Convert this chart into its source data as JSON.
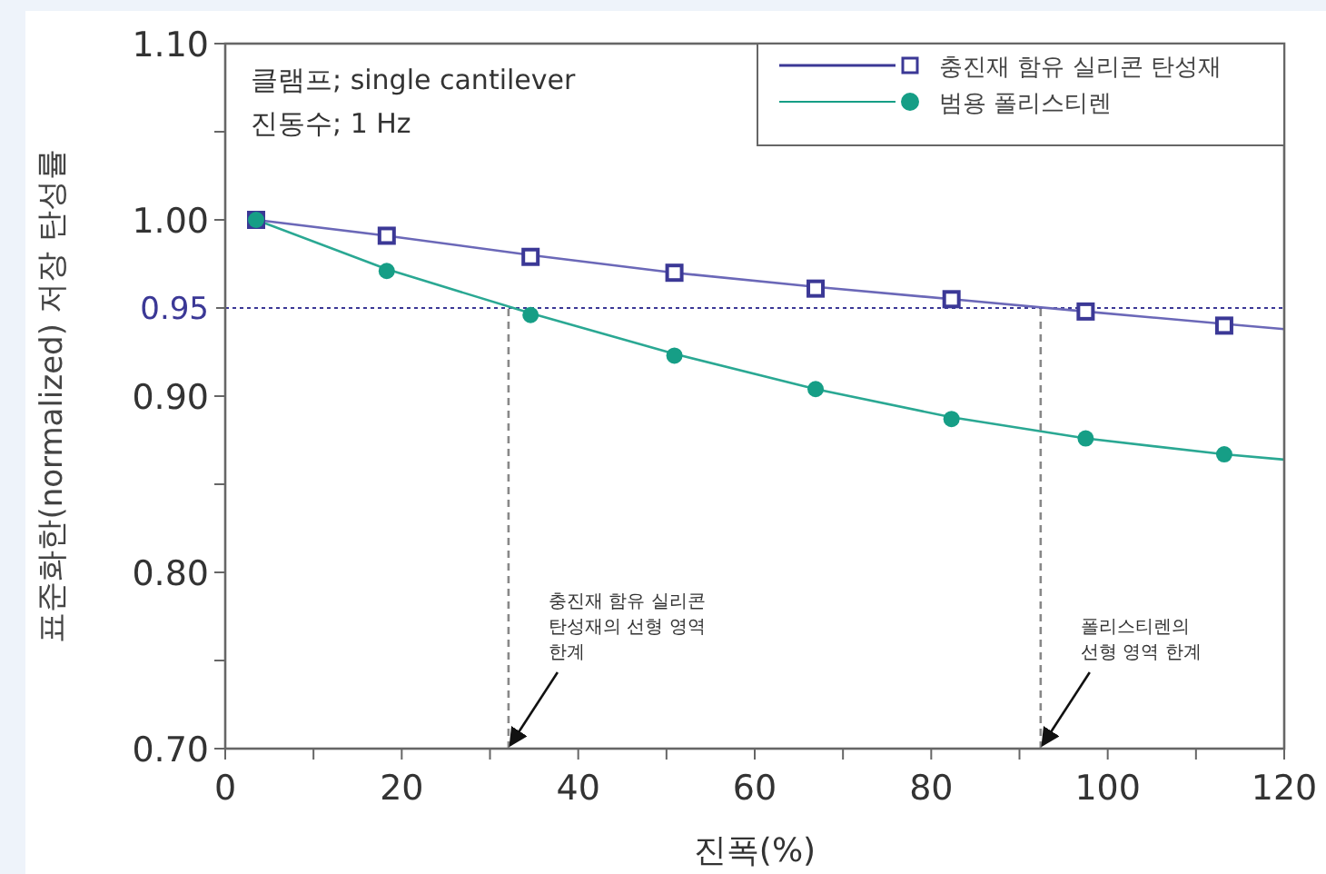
{
  "chart_data": {
    "type": "scatter",
    "xlabel": "진폭(%)",
    "ylabel": "표준화한(normalized) 저장 탄성률",
    "xlim": [
      0,
      120
    ],
    "ylim": [
      0.7,
      1.1
    ],
    "xticks": [
      0,
      {
        "value": 10,
        "label": null
      },
      20,
      {
        "value": 30,
        "label": null
      },
      40,
      {
        "value": 50,
        "label": null
      },
      60,
      {
        "value": 70,
        "label": null
      },
      80,
      {
        "value": 90,
        "label": null
      },
      100,
      {
        "value": 110,
        "label": null
      },
      120
    ],
    "yticks": [
      {
        "value": 0.7,
        "label": "0.70"
      },
      {
        "value": 0.75,
        "label": null
      },
      {
        "value": 0.8,
        "label": "0.80"
      },
      {
        "value": 0.85,
        "label": null
      },
      {
        "value": 0.9,
        "label": "0.90"
      },
      {
        "value": 1.0,
        "label": "1.00"
      },
      {
        "value": 1.05,
        "label": null
      },
      {
        "value": 1.1,
        "label": "1.10"
      }
    ],
    "legend": "top right",
    "grid": false,
    "series": [
      {
        "name": "충진재 함유 실리콘 탄성재",
        "color": "#3b3896",
        "marker": "square",
        "x": [
          3.5,
          18.3,
          34.6,
          50.9,
          66.9,
          82.3,
          97.5,
          113.2
        ],
        "values": [
          1.0,
          0.991,
          0.979,
          0.97,
          0.961,
          0.955,
          0.948,
          0.94
        ]
      },
      {
        "name": "범용 폴리스티렌",
        "color": "#169e86",
        "marker": "circle",
        "x": [
          3.5,
          18.3,
          34.6,
          50.9,
          66.9,
          82.3,
          97.5,
          113.2
        ],
        "values": [
          1.0,
          0.971,
          0.946,
          0.923,
          0.904,
          0.887,
          0.876,
          0.867
        ]
      },
      {
        "type": "line",
        "color": "#6b68b8",
        "x": [
          3.5,
          18.3,
          34.6,
          50.9,
          66.9,
          82.3,
          97.5,
          113.2,
          120
        ],
        "values": [
          1.0,
          0.991,
          0.98,
          0.97,
          0.962,
          0.955,
          0.948,
          0.941,
          0.938
        ]
      },
      {
        "type": "line",
        "color": "#2aa893",
        "x": [
          3.5,
          18.3,
          34.6,
          50.9,
          66.9,
          82.3,
          97.5,
          113.2,
          120
        ],
        "values": [
          1.0,
          0.972,
          0.947,
          0.924,
          0.904,
          0.888,
          0.876,
          0.867,
          0.864
        ]
      },
      {
        "type": "line",
        "color": "#888888",
        "line_style": "dashed",
        "x": [
          32.1,
          32.1
        ],
        "values": [
          0.7,
          0.95
        ]
      },
      {
        "type": "line",
        "color": "#888888",
        "line_style": "dashed",
        "x": [
          92.4,
          92.4
        ],
        "values": [
          0.7,
          0.95
        ]
      }
    ],
    "ref_lines": [
      {
        "axis": "y",
        "value": 0.95,
        "label": "0.95",
        "color": "#3b3896",
        "line_style": "dotted"
      }
    ],
    "annotations": [
      "클램프; single cantilever",
      "진동수; 1 Hz",
      {
        "text": "충진재 함유 실리콘\n탄성재의 선형 영역\n한계",
        "x": 32.1,
        "y": 0.7
      },
      {
        "text": "폴리스티렌의\n선형 영역 한계",
        "x": 92.4,
        "y": 0.7
      }
    ]
  }
}
